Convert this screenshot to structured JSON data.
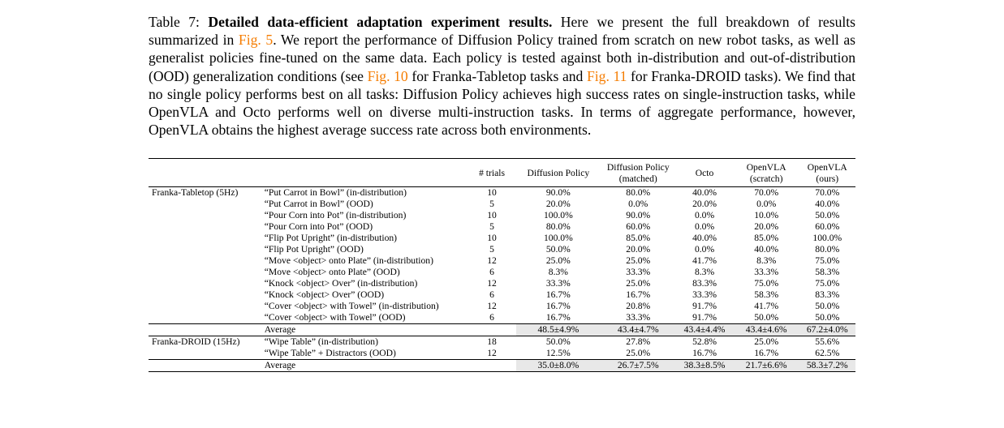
{
  "caption": {
    "label": "Table 7:",
    "title": "Detailed data-efficient adaptation experiment results.",
    "text1": " Here we present the full breakdown of results summarized in ",
    "ref1": "Fig. 5",
    "text2": ". We report the performance of Diffusion Policy trained from scratch on new robot tasks, as well as generalist policies fine-tuned on the same data. Each policy is tested against both in-distribution and out-of-distribution (OOD) generalization conditions (see ",
    "ref2": "Fig. 10",
    "text3": " for Franka-Tabletop tasks and ",
    "ref3": "Fig. 11",
    "text4": " for Franka-DROID tasks). We find that no single policy performs best on all tasks: Diffusion Policy achieves high success rates on single-instruction tasks, while OpenVLA and Octo performs well on diverse multi-instruction tasks. In terms of aggregate performance, however, OpenVLA obtains the highest average success rate across both environments."
  },
  "table": {
    "headers": {
      "trials": "# trials",
      "diffusion": "Diffusion Policy",
      "diffusion_matched_1": "Diffusion Policy",
      "diffusion_matched_2": "(matched)",
      "octo": "Octo",
      "openvla_scratch_1": "OpenVLA",
      "openvla_scratch_2": "(scratch)",
      "openvla_ours_1": "OpenVLA",
      "openvla_ours_2": "(ours)"
    },
    "groups": [
      {
        "env": "Franka-Tabletop (5Hz)",
        "rows": [
          {
            "task": "“Put Carrot in Bowl” (in-distribution)",
            "trials": "10",
            "values": [
              "90.0%",
              "80.0%",
              "40.0%",
              "70.0%",
              "70.0%"
            ],
            "bold": [
              true,
              false,
              false,
              false,
              false
            ]
          },
          {
            "task": "“Put Carrot in Bowl” (OOD)",
            "trials": "5",
            "values": [
              "20.0%",
              "0.0%",
              "20.0%",
              "0.0%",
              "40.0%"
            ],
            "bold": [
              false,
              false,
              false,
              false,
              true
            ]
          },
          {
            "task": "“Pour Corn into Pot” (in-distribution)",
            "trials": "10",
            "values": [
              "100.0%",
              "90.0%",
              "0.0%",
              "10.0%",
              "50.0%"
            ],
            "bold": [
              true,
              false,
              false,
              false,
              false
            ]
          },
          {
            "task": "“Pour Corn into Pot” (OOD)",
            "trials": "5",
            "values": [
              "80.0%",
              "60.0%",
              "0.0%",
              "20.0%",
              "60.0%"
            ],
            "bold": [
              true,
              false,
              false,
              false,
              false
            ]
          },
          {
            "task": "“Flip Pot Upright” (in-distribution)",
            "trials": "10",
            "values": [
              "100.0%",
              "85.0%",
              "40.0%",
              "85.0%",
              "100.0%"
            ],
            "bold": [
              true,
              false,
              false,
              false,
              true
            ]
          },
          {
            "task": "“Flip Pot Upright” (OOD)",
            "trials": "5",
            "values": [
              "50.0%",
              "20.0%",
              "0.0%",
              "40.0%",
              "80.0%"
            ],
            "bold": [
              false,
              false,
              false,
              false,
              true
            ]
          },
          {
            "task": "“Move <object> onto Plate” (in-distribution)",
            "trials": "12",
            "values": [
              "25.0%",
              "25.0%",
              "41.7%",
              "8.3%",
              "75.0%"
            ],
            "bold": [
              false,
              false,
              false,
              false,
              true
            ]
          },
          {
            "task": "“Move <object> onto Plate” (OOD)",
            "trials": "6",
            "values": [
              "8.3%",
              "33.3%",
              "8.3%",
              "33.3%",
              "58.3%"
            ],
            "bold": [
              false,
              false,
              false,
              false,
              true
            ]
          },
          {
            "task": "“Knock <object> Over” (in-distribution)",
            "trials": "12",
            "values": [
              "33.3%",
              "25.0%",
              "83.3%",
              "75.0%",
              "75.0%"
            ],
            "bold": [
              false,
              false,
              true,
              false,
              false
            ]
          },
          {
            "task": "“Knock <object> Over” (OOD)",
            "trials": "6",
            "values": [
              "16.7%",
              "16.7%",
              "33.3%",
              "58.3%",
              "83.3%"
            ],
            "bold": [
              false,
              false,
              false,
              false,
              true
            ]
          },
          {
            "task": "“Cover <object> with Towel” (in-distribution)",
            "trials": "12",
            "values": [
              "16.7%",
              "20.8%",
              "91.7%",
              "41.7%",
              "50.0%"
            ],
            "bold": [
              false,
              false,
              true,
              false,
              false
            ]
          },
          {
            "task": "“Cover <object> with Towel” (OOD)",
            "trials": "6",
            "values": [
              "16.7%",
              "33.3%",
              "91.7%",
              "50.0%",
              "50.0%"
            ],
            "bold": [
              false,
              false,
              true,
              false,
              false
            ]
          }
        ],
        "average": {
          "label": "Average",
          "values": [
            "48.5±4.9%",
            "43.4±4.7%",
            "43.4±4.4%",
            "43.4±4.6%",
            "67.2±4.0%"
          ],
          "bold": [
            false,
            false,
            false,
            false,
            true
          ]
        }
      },
      {
        "env": "Franka-DROID (15Hz)",
        "rows": [
          {
            "task": "“Wipe Table” (in-distribution)",
            "trials": "18",
            "values": [
              "50.0%",
              "27.8%",
              "52.8%",
              "25.0%",
              "55.6%"
            ],
            "bold": [
              false,
              false,
              false,
              false,
              false
            ]
          },
          {
            "task": "“Wipe Table” + Distractors (OOD)",
            "trials": "12",
            "values": [
              "12.5%",
              "25.0%",
              "16.7%",
              "16.7%",
              "62.5%"
            ],
            "bold": [
              false,
              false,
              false,
              false,
              false
            ]
          }
        ],
        "average": {
          "label": "Average",
          "values": [
            "35.0±8.0%",
            "26.7±7.5%",
            "38.3±8.5%",
            "21.7±6.6%",
            "58.3±7.2%"
          ],
          "bold": [
            false,
            false,
            false,
            false,
            true
          ]
        }
      }
    ]
  }
}
